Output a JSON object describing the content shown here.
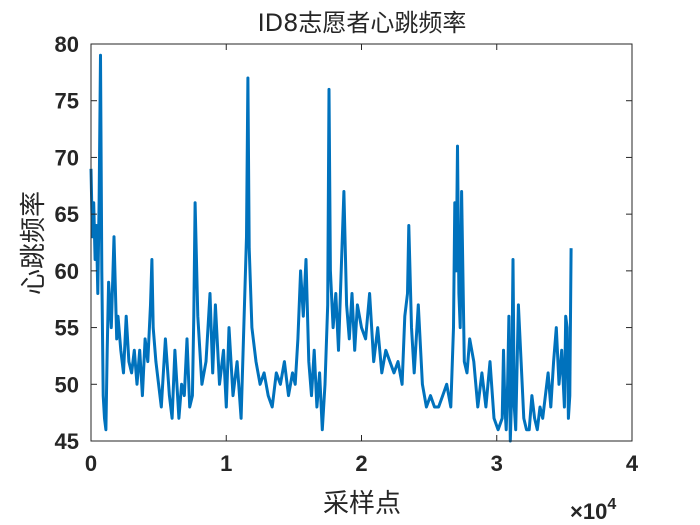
{
  "chart_data": {
    "type": "line",
    "title": "ID8志愿者心跳频率",
    "xlabel": "采样点",
    "ylabel": "心跳频率",
    "xlim": [
      0,
      4
    ],
    "ylim": [
      45,
      80
    ],
    "x_ticks": [
      "0",
      "1",
      "2",
      "3",
      "4"
    ],
    "y_ticks": [
      "45",
      "50",
      "55",
      "60",
      "65",
      "70",
      "75",
      "80"
    ],
    "x_exponent_label": "×10",
    "x_exponent_power": "4",
    "grid": false,
    "series_color": "#0072BD",
    "series": [
      {
        "x": [
          0,
          0.01,
          0.02,
          0.03,
          0.04,
          0.05,
          0.06,
          0.07,
          0.08,
          0.09,
          0.1,
          0.11,
          0.12,
          0.13,
          0.15,
          0.17,
          0.19,
          0.2,
          0.22,
          0.24,
          0.26,
          0.28,
          0.3,
          0.32,
          0.34,
          0.36,
          0.38,
          0.4,
          0.42,
          0.44,
          0.45,
          0.46,
          0.48,
          0.5,
          0.52,
          0.55,
          0.58,
          0.6,
          0.62,
          0.65,
          0.67,
          0.69,
          0.71,
          0.73,
          0.75,
          0.76,
          0.77,
          0.79,
          0.82,
          0.85,
          0.88,
          0.9,
          0.92,
          0.95,
          0.98,
          1.0,
          1.02,
          1.05,
          1.08,
          1.11,
          1.13,
          1.15,
          1.16,
          1.17,
          1.19,
          1.22,
          1.25,
          1.28,
          1.31,
          1.34,
          1.37,
          1.4,
          1.43,
          1.46,
          1.49,
          1.51,
          1.53,
          1.55,
          1.57,
          1.59,
          1.61,
          1.63,
          1.65,
          1.67,
          1.69,
          1.71,
          1.73,
          1.75,
          1.76,
          1.77,
          1.79,
          1.81,
          1.83,
          1.85,
          1.87,
          1.89,
          1.91,
          1.93,
          1.95,
          1.97,
          2.0,
          2.03,
          2.06,
          2.09,
          2.12,
          2.15,
          2.18,
          2.21,
          2.24,
          2.27,
          2.3,
          2.32,
          2.34,
          2.35,
          2.37,
          2.39,
          2.42,
          2.45,
          2.48,
          2.51,
          2.54,
          2.57,
          2.6,
          2.63,
          2.66,
          2.68,
          2.69,
          2.7,
          2.71,
          2.72,
          2.73,
          2.74,
          2.76,
          2.78,
          2.8,
          2.83,
          2.86,
          2.89,
          2.92,
          2.95,
          2.98,
          3.01,
          3.04,
          3.05,
          3.06,
          3.07,
          3.08,
          3.09,
          3.1,
          3.11,
          3.12,
          3.13,
          3.14,
          3.16,
          3.18,
          3.2,
          3.22,
          3.24,
          3.26,
          3.28,
          3.3,
          3.32,
          3.34,
          3.36,
          3.38,
          3.4,
          3.42,
          3.44,
          3.46,
          3.48,
          3.5,
          3.51,
          3.52,
          3.53,
          3.54,
          3.55
        ],
        "y": [
          69,
          63,
          66,
          61,
          64,
          58,
          66,
          79,
          60,
          49,
          47,
          46,
          53,
          59,
          55,
          63,
          54,
          56,
          53,
          51,
          56,
          52,
          51,
          53,
          50,
          53,
          49,
          54,
          52,
          57,
          61,
          55,
          52,
          50,
          48,
          54,
          49,
          47,
          53,
          47,
          50,
          49,
          54,
          48,
          49,
          56,
          66,
          56,
          50,
          52,
          58,
          51,
          57,
          50,
          53,
          48,
          55,
          49,
          52,
          47,
          55,
          63,
          77,
          62,
          55,
          52,
          50,
          51,
          49,
          48,
          51,
          50,
          52,
          49,
          51,
          50,
          54,
          60,
          56,
          61,
          52,
          49,
          53,
          48,
          51,
          46,
          50,
          57,
          76,
          60,
          55,
          58,
          53,
          60,
          67,
          57,
          54,
          58,
          53,
          57,
          55,
          54,
          58,
          52,
          55,
          51,
          53,
          52,
          51,
          52,
          50,
          56,
          58,
          64,
          55,
          51,
          57,
          50,
          48,
          49,
          48,
          48,
          49,
          50,
          48,
          55,
          66,
          60,
          71,
          58,
          55,
          67,
          52,
          51,
          54,
          52,
          48,
          51,
          48,
          52,
          47,
          46,
          47,
          53,
          48,
          46,
          50,
          56,
          45,
          49,
          61,
          48,
          46,
          57,
          52,
          47,
          46,
          46,
          49,
          47,
          46,
          48,
          47,
          49,
          51,
          48,
          52,
          55,
          50,
          53,
          48,
          56,
          55,
          47,
          49,
          62
        ]
      }
    ]
  }
}
